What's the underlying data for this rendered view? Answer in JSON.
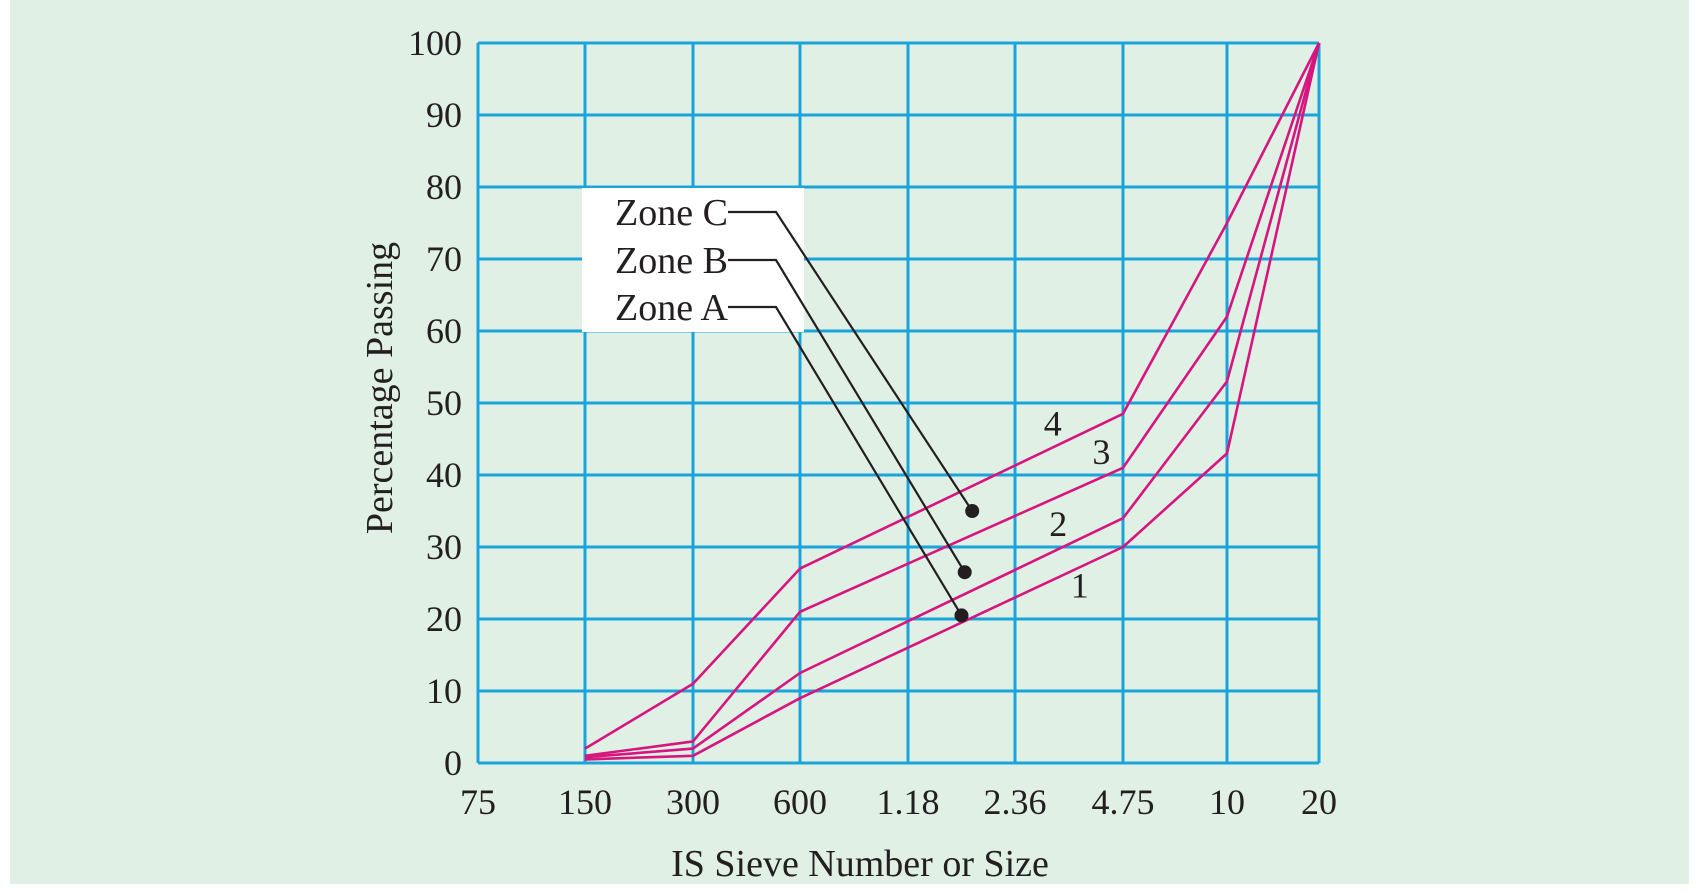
{
  "chart_data": {
    "type": "line",
    "title": "",
    "xlabel": "IS Sieve Number or Size",
    "ylabel": "Percentage Passing",
    "categories": [
      "75",
      "150",
      "300",
      "600",
      "1.18",
      "2.36",
      "4.75",
      "10",
      "20"
    ],
    "yticks": [
      "0",
      "10",
      "20",
      "30",
      "40",
      "50",
      "60",
      "70",
      "80",
      "90",
      "100"
    ],
    "ylim": [
      0,
      100
    ],
    "grid": true,
    "grid_color": "#1ba3dc",
    "line_color": "#d6157f",
    "background_color": "#e1f0e5",
    "series": [
      {
        "name": "1",
        "points": [
          [
            1,
            0.5
          ],
          [
            2,
            1
          ],
          [
            3,
            9
          ],
          [
            6,
            30
          ],
          [
            7,
            43
          ],
          [
            8,
            100
          ]
        ]
      },
      {
        "name": "2",
        "points": [
          [
            1,
            0.8
          ],
          [
            2,
            2
          ],
          [
            3,
            12.5
          ],
          [
            6,
            34
          ],
          [
            7,
            53
          ],
          [
            8,
            100
          ]
        ]
      },
      {
        "name": "3",
        "points": [
          [
            1,
            1
          ],
          [
            2,
            3
          ],
          [
            3,
            21
          ],
          [
            6,
            41
          ],
          [
            7,
            62
          ],
          [
            8,
            100
          ]
        ]
      },
      {
        "name": "4",
        "points": [
          [
            1,
            2
          ],
          [
            2,
            11
          ],
          [
            3,
            27
          ],
          [
            6,
            48.5
          ],
          [
            7,
            75
          ],
          [
            8,
            100
          ]
        ]
      }
    ],
    "curve_labels": [
      {
        "text": "1",
        "x": 5.6,
        "y": 23
      },
      {
        "text": "2",
        "x": 5.4,
        "y": 31.5
      },
      {
        "text": "3",
        "x": 5.8,
        "y": 41.5
      },
      {
        "text": "4",
        "x": 5.35,
        "y": 45.5
      }
    ],
    "zone_labels": [
      {
        "text": "Zone C",
        "point": [
          4.6,
          35
        ]
      },
      {
        "text": "Zone B",
        "point": [
          4.53,
          26.5
        ]
      },
      {
        "text": "Zone A",
        "point": [
          4.5,
          20.5
        ]
      }
    ]
  }
}
